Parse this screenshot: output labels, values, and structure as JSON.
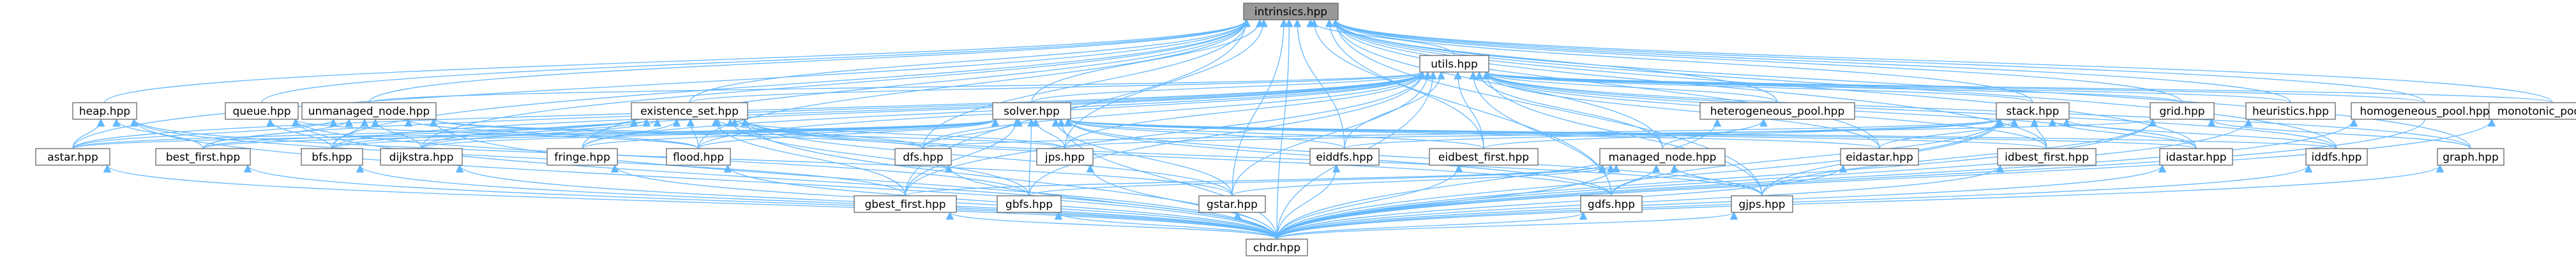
{
  "graph": {
    "root": "intrinsics.hpp",
    "colors": {
      "edge": "#63b8ff",
      "node_border": "#666666",
      "root_fill": "#999999",
      "node_fill": "#ffffff"
    },
    "nodes": [
      {
        "id": "intrinsics",
        "label": "intrinsics.hpp",
        "root": true
      },
      {
        "id": "utils",
        "label": "utils.hpp"
      },
      {
        "id": "heap",
        "label": "heap.hpp"
      },
      {
        "id": "queue",
        "label": "queue.hpp"
      },
      {
        "id": "unmanaged_node",
        "label": "unmanaged_node.hpp"
      },
      {
        "id": "existence_set",
        "label": "existence_set.hpp"
      },
      {
        "id": "solver",
        "label": "solver.hpp"
      },
      {
        "id": "heterogeneous_pool",
        "label": "heterogeneous_pool.hpp"
      },
      {
        "id": "stack",
        "label": "stack.hpp"
      },
      {
        "id": "grid",
        "label": "grid.hpp"
      },
      {
        "id": "heuristics",
        "label": "heuristics.hpp"
      },
      {
        "id": "homogeneous_pool",
        "label": "homogeneous_pool.hpp"
      },
      {
        "id": "monotonic_pool",
        "label": "monotonic_pool.hpp"
      },
      {
        "id": "astar",
        "label": "astar.hpp"
      },
      {
        "id": "best_first",
        "label": "best_first.hpp"
      },
      {
        "id": "bfs",
        "label": "bfs.hpp"
      },
      {
        "id": "dijkstra",
        "label": "dijkstra.hpp"
      },
      {
        "id": "fringe",
        "label": "fringe.hpp"
      },
      {
        "id": "flood",
        "label": "flood.hpp"
      },
      {
        "id": "dfs",
        "label": "dfs.hpp"
      },
      {
        "id": "jps",
        "label": "jps.hpp"
      },
      {
        "id": "eiddfs",
        "label": "eiddfs.hpp"
      },
      {
        "id": "eidbest_first",
        "label": "eidbest_first.hpp"
      },
      {
        "id": "managed_node",
        "label": "managed_node.hpp"
      },
      {
        "id": "eidastar",
        "label": "eidastar.hpp"
      },
      {
        "id": "idbest_first",
        "label": "idbest_first.hpp"
      },
      {
        "id": "idastar",
        "label": "idastar.hpp"
      },
      {
        "id": "iddfs",
        "label": "iddfs.hpp"
      },
      {
        "id": "graph",
        "label": "graph.hpp"
      },
      {
        "id": "gbest_first",
        "label": "gbest_first.hpp"
      },
      {
        "id": "gbfs",
        "label": "gbfs.hpp"
      },
      {
        "id": "gstar",
        "label": "gstar.hpp"
      },
      {
        "id": "gdfs",
        "label": "gdfs.hpp"
      },
      {
        "id": "gjps",
        "label": "gjps.hpp"
      },
      {
        "id": "chdr",
        "label": "chdr.hpp"
      }
    ],
    "edges": [
      [
        "utils",
        "intrinsics"
      ],
      [
        "heap",
        "intrinsics"
      ],
      [
        "queue",
        "intrinsics"
      ],
      [
        "unmanaged_node",
        "intrinsics"
      ],
      [
        "existence_set",
        "intrinsics"
      ],
      [
        "solver",
        "intrinsics"
      ],
      [
        "heterogeneous_pool",
        "intrinsics"
      ],
      [
        "stack",
        "intrinsics"
      ],
      [
        "grid",
        "intrinsics"
      ],
      [
        "heuristics",
        "intrinsics"
      ],
      [
        "homogeneous_pool",
        "intrinsics"
      ],
      [
        "monotonic_pool",
        "intrinsics"
      ],
      [
        "astar",
        "intrinsics"
      ],
      [
        "bfs",
        "intrinsics"
      ],
      [
        "dijkstra",
        "intrinsics"
      ],
      [
        "fringe",
        "intrinsics"
      ],
      [
        "flood",
        "intrinsics"
      ],
      [
        "dfs",
        "intrinsics"
      ],
      [
        "jps",
        "intrinsics"
      ],
      [
        "eiddfs",
        "intrinsics"
      ],
      [
        "eidbest_first",
        "intrinsics"
      ],
      [
        "managed_node",
        "intrinsics"
      ],
      [
        "eidastar",
        "intrinsics"
      ],
      [
        "idbest_first",
        "intrinsics"
      ],
      [
        "idastar",
        "intrinsics"
      ],
      [
        "iddfs",
        "intrinsics"
      ],
      [
        "graph",
        "intrinsics"
      ],
      [
        "gbest_first",
        "intrinsics"
      ],
      [
        "gstar",
        "intrinsics"
      ],
      [
        "gdfs",
        "intrinsics"
      ],
      [
        "gjps",
        "intrinsics"
      ],
      [
        "chdr",
        "intrinsics"
      ],
      [
        "unmanaged_node",
        "utils"
      ],
      [
        "existence_set",
        "utils"
      ],
      [
        "solver",
        "utils"
      ],
      [
        "heterogeneous_pool",
        "utils"
      ],
      [
        "stack",
        "utils"
      ],
      [
        "grid",
        "utils"
      ],
      [
        "heuristics",
        "utils"
      ],
      [
        "homogeneous_pool",
        "utils"
      ],
      [
        "monotonic_pool",
        "utils"
      ],
      [
        "astar",
        "utils"
      ],
      [
        "best_first",
        "utils"
      ],
      [
        "bfs",
        "utils"
      ],
      [
        "dijkstra",
        "utils"
      ],
      [
        "fringe",
        "utils"
      ],
      [
        "flood",
        "utils"
      ],
      [
        "dfs",
        "utils"
      ],
      [
        "jps",
        "utils"
      ],
      [
        "eiddfs",
        "utils"
      ],
      [
        "eidbest_first",
        "utils"
      ],
      [
        "managed_node",
        "utils"
      ],
      [
        "eidastar",
        "utils"
      ],
      [
        "idbest_first",
        "utils"
      ],
      [
        "idastar",
        "utils"
      ],
      [
        "iddfs",
        "utils"
      ],
      [
        "graph",
        "utils"
      ],
      [
        "gbest_first",
        "utils"
      ],
      [
        "gbfs",
        "utils"
      ],
      [
        "gstar",
        "utils"
      ],
      [
        "gdfs",
        "utils"
      ],
      [
        "gjps",
        "utils"
      ],
      [
        "chdr",
        "utils"
      ],
      [
        "astar",
        "heap"
      ],
      [
        "best_first",
        "heap"
      ],
      [
        "gbest_first",
        "heap"
      ],
      [
        "gstar",
        "heap"
      ],
      [
        "chdr",
        "heap"
      ],
      [
        "bfs",
        "queue"
      ],
      [
        "flood",
        "queue"
      ],
      [
        "gbfs",
        "queue"
      ],
      [
        "chdr",
        "queue"
      ],
      [
        "astar",
        "unmanaged_node"
      ],
      [
        "best_first",
        "unmanaged_node"
      ],
      [
        "bfs",
        "unmanaged_node"
      ],
      [
        "dijkstra",
        "unmanaged_node"
      ],
      [
        "dfs",
        "unmanaged_node"
      ],
      [
        "jps",
        "unmanaged_node"
      ],
      [
        "flood",
        "unmanaged_node"
      ],
      [
        "chdr",
        "unmanaged_node"
      ],
      [
        "astar",
        "existence_set"
      ],
      [
        "best_first",
        "existence_set"
      ],
      [
        "bfs",
        "existence_set"
      ],
      [
        "dijkstra",
        "existence_set"
      ],
      [
        "fringe",
        "existence_set"
      ],
      [
        "flood",
        "existence_set"
      ],
      [
        "dfs",
        "existence_set"
      ],
      [
        "jps",
        "existence_set"
      ],
      [
        "gbest_first",
        "existence_set"
      ],
      [
        "gbfs",
        "existence_set"
      ],
      [
        "gstar",
        "existence_set"
      ],
      [
        "gdfs",
        "existence_set"
      ],
      [
        "gjps",
        "existence_set"
      ],
      [
        "chdr",
        "existence_set"
      ],
      [
        "astar",
        "solver"
      ],
      [
        "best_first",
        "solver"
      ],
      [
        "bfs",
        "solver"
      ],
      [
        "dijkstra",
        "solver"
      ],
      [
        "fringe",
        "solver"
      ],
      [
        "flood",
        "solver"
      ],
      [
        "dfs",
        "solver"
      ],
      [
        "jps",
        "solver"
      ],
      [
        "eiddfs",
        "solver"
      ],
      [
        "eidbest_first",
        "solver"
      ],
      [
        "eidastar",
        "solver"
      ],
      [
        "idbest_first",
        "solver"
      ],
      [
        "idastar",
        "solver"
      ],
      [
        "iddfs",
        "solver"
      ],
      [
        "gbest_first",
        "solver"
      ],
      [
        "gbfs",
        "solver"
      ],
      [
        "gstar",
        "solver"
      ],
      [
        "gdfs",
        "solver"
      ],
      [
        "gjps",
        "solver"
      ],
      [
        "chdr",
        "solver"
      ],
      [
        "managed_node",
        "heterogeneous_pool"
      ],
      [
        "chdr",
        "heterogeneous_pool"
      ],
      [
        "dfs",
        "stack"
      ],
      [
        "eiddfs",
        "stack"
      ],
      [
        "eidbest_first",
        "stack"
      ],
      [
        "eidastar",
        "stack"
      ],
      [
        "idbest_first",
        "stack"
      ],
      [
        "idastar",
        "stack"
      ],
      [
        "iddfs",
        "stack"
      ],
      [
        "gdfs",
        "stack"
      ],
      [
        "gjps",
        "stack"
      ],
      [
        "chdr",
        "stack"
      ],
      [
        "graph",
        "grid"
      ],
      [
        "chdr",
        "grid"
      ],
      [
        "gjps",
        "grid"
      ],
      [
        "jps",
        "grid"
      ],
      [
        "chdr",
        "heuristics"
      ],
      [
        "homogeneous_pool",
        "chdr"
      ],
      [
        "chdr",
        "homogeneous_pool"
      ],
      [
        "chdr",
        "monotonic_pool"
      ],
      [
        "gbest_first",
        "managed_node"
      ],
      [
        "gbfs",
        "managed_node"
      ],
      [
        "gstar",
        "managed_node"
      ],
      [
        "gdfs",
        "managed_node"
      ],
      [
        "gjps",
        "managed_node"
      ],
      [
        "chdr",
        "managed_node"
      ],
      [
        "chdr",
        "astar"
      ],
      [
        "chdr",
        "best_first"
      ],
      [
        "chdr",
        "bfs"
      ],
      [
        "chdr",
        "dijkstra"
      ],
      [
        "chdr",
        "fringe"
      ],
      [
        "chdr",
        "flood"
      ],
      [
        "chdr",
        "dfs"
      ],
      [
        "chdr",
        "jps"
      ],
      [
        "chdr",
        "eiddfs"
      ],
      [
        "chdr",
        "eidbest_first"
      ],
      [
        "chdr",
        "eidastar"
      ],
      [
        "chdr",
        "idbest_first"
      ],
      [
        "chdr",
        "idastar"
      ],
      [
        "chdr",
        "iddfs"
      ],
      [
        "chdr",
        "graph"
      ],
      [
        "chdr",
        "gbest_first"
      ],
      [
        "chdr",
        "gbfs"
      ],
      [
        "chdr",
        "gstar"
      ],
      [
        "chdr",
        "gdfs"
      ],
      [
        "chdr",
        "gjps"
      ]
    ]
  }
}
